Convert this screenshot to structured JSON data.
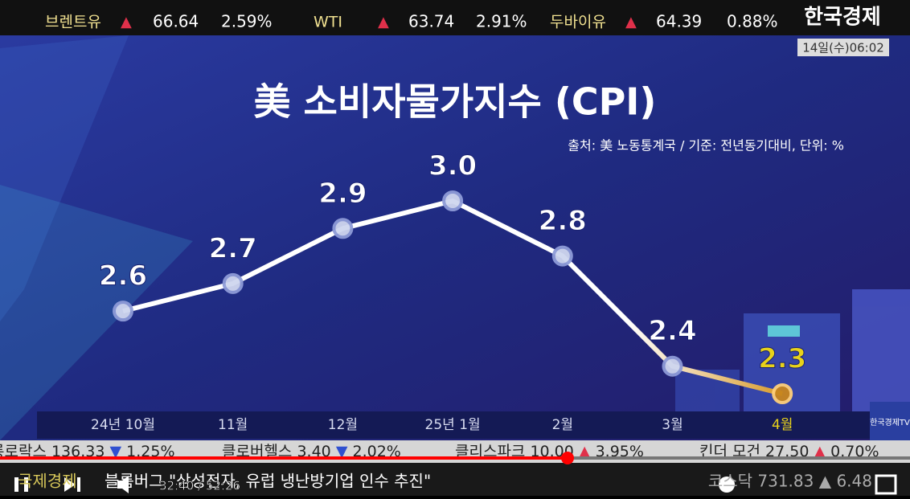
{
  "top_ticker": [
    {
      "name": "브렌트유",
      "arrow": "▲",
      "price": "66.64",
      "change": "2.59%"
    },
    {
      "name": "WTI",
      "arrow": "▲",
      "price": "63.74",
      "change": "2.91%"
    },
    {
      "name": "두바이유",
      "arrow": "▲",
      "price": "64.39",
      "change": "0.88%"
    }
  ],
  "broadcaster": {
    "logo": "한국경제",
    "datetime": "14일(수)06:02",
    "badge": "한국경제TV"
  },
  "chart_data": {
    "type": "line",
    "title": "美 소비자물가지수 (CPI)",
    "subtitle": "출처: 美 노동통계국 / 기준: 전년동기대비, 단위: %",
    "categories": [
      "24년 10월",
      "11월",
      "12월",
      "25년 1월",
      "2월",
      "3월",
      "4월"
    ],
    "values": [
      2.6,
      2.7,
      2.9,
      3.0,
      2.8,
      2.4,
      2.3
    ],
    "value_labels": [
      "2.6",
      "2.7",
      "2.9",
      "3.0",
      "2.8",
      "2.4",
      "2.3"
    ],
    "color": "#ffffff",
    "highlight_color": "#e8d21a"
  },
  "bottom_ticker": [
    {
      "name": "롱로락스",
      "price": "136.33",
      "arrow": "▼",
      "change": "1.25%"
    },
    {
      "name": "클로버헬스",
      "price": "3.40",
      "arrow": "▼",
      "change": "2.02%"
    },
    {
      "name": "클리스파크",
      "price": "10.00",
      "arrow": "▲",
      "change": "3.95%"
    },
    {
      "name": "킨더 모건",
      "price": "27.50",
      "arrow": "▲",
      "change": "0.70%"
    }
  ],
  "player": {
    "program": "국제경제",
    "headline": "블룸버그 \"삼성전자, 유럽 냉난방기업 인수 추진\"",
    "time": "32:40 / 52:26",
    "right_ticker": "코스닥 731.83 ▲ 6.48"
  }
}
